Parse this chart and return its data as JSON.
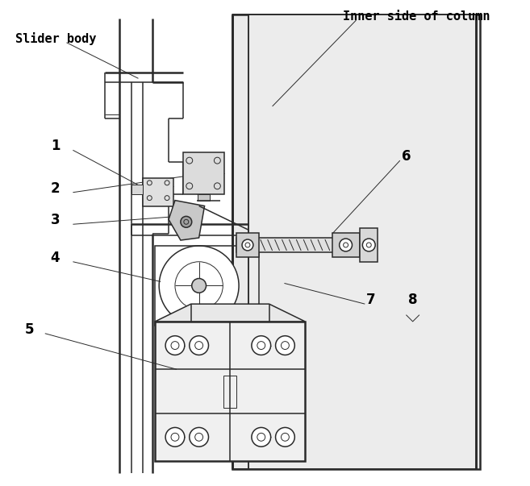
{
  "figsize": [
    6.57,
    6.03
  ],
  "dpi": 100,
  "bg_color": "#ffffff",
  "line_color": "#2a2a2a",
  "labels": {
    "slider_body": "Slider body",
    "inner_column": "Inner side of column",
    "1": "1",
    "2": "2",
    "3": "3",
    "4": "4",
    "5": "5",
    "6": "6",
    "7": "7",
    "8": "8"
  },
  "lw_main": 1.1,
  "lw_thick": 1.8,
  "lw_thin": 0.7
}
